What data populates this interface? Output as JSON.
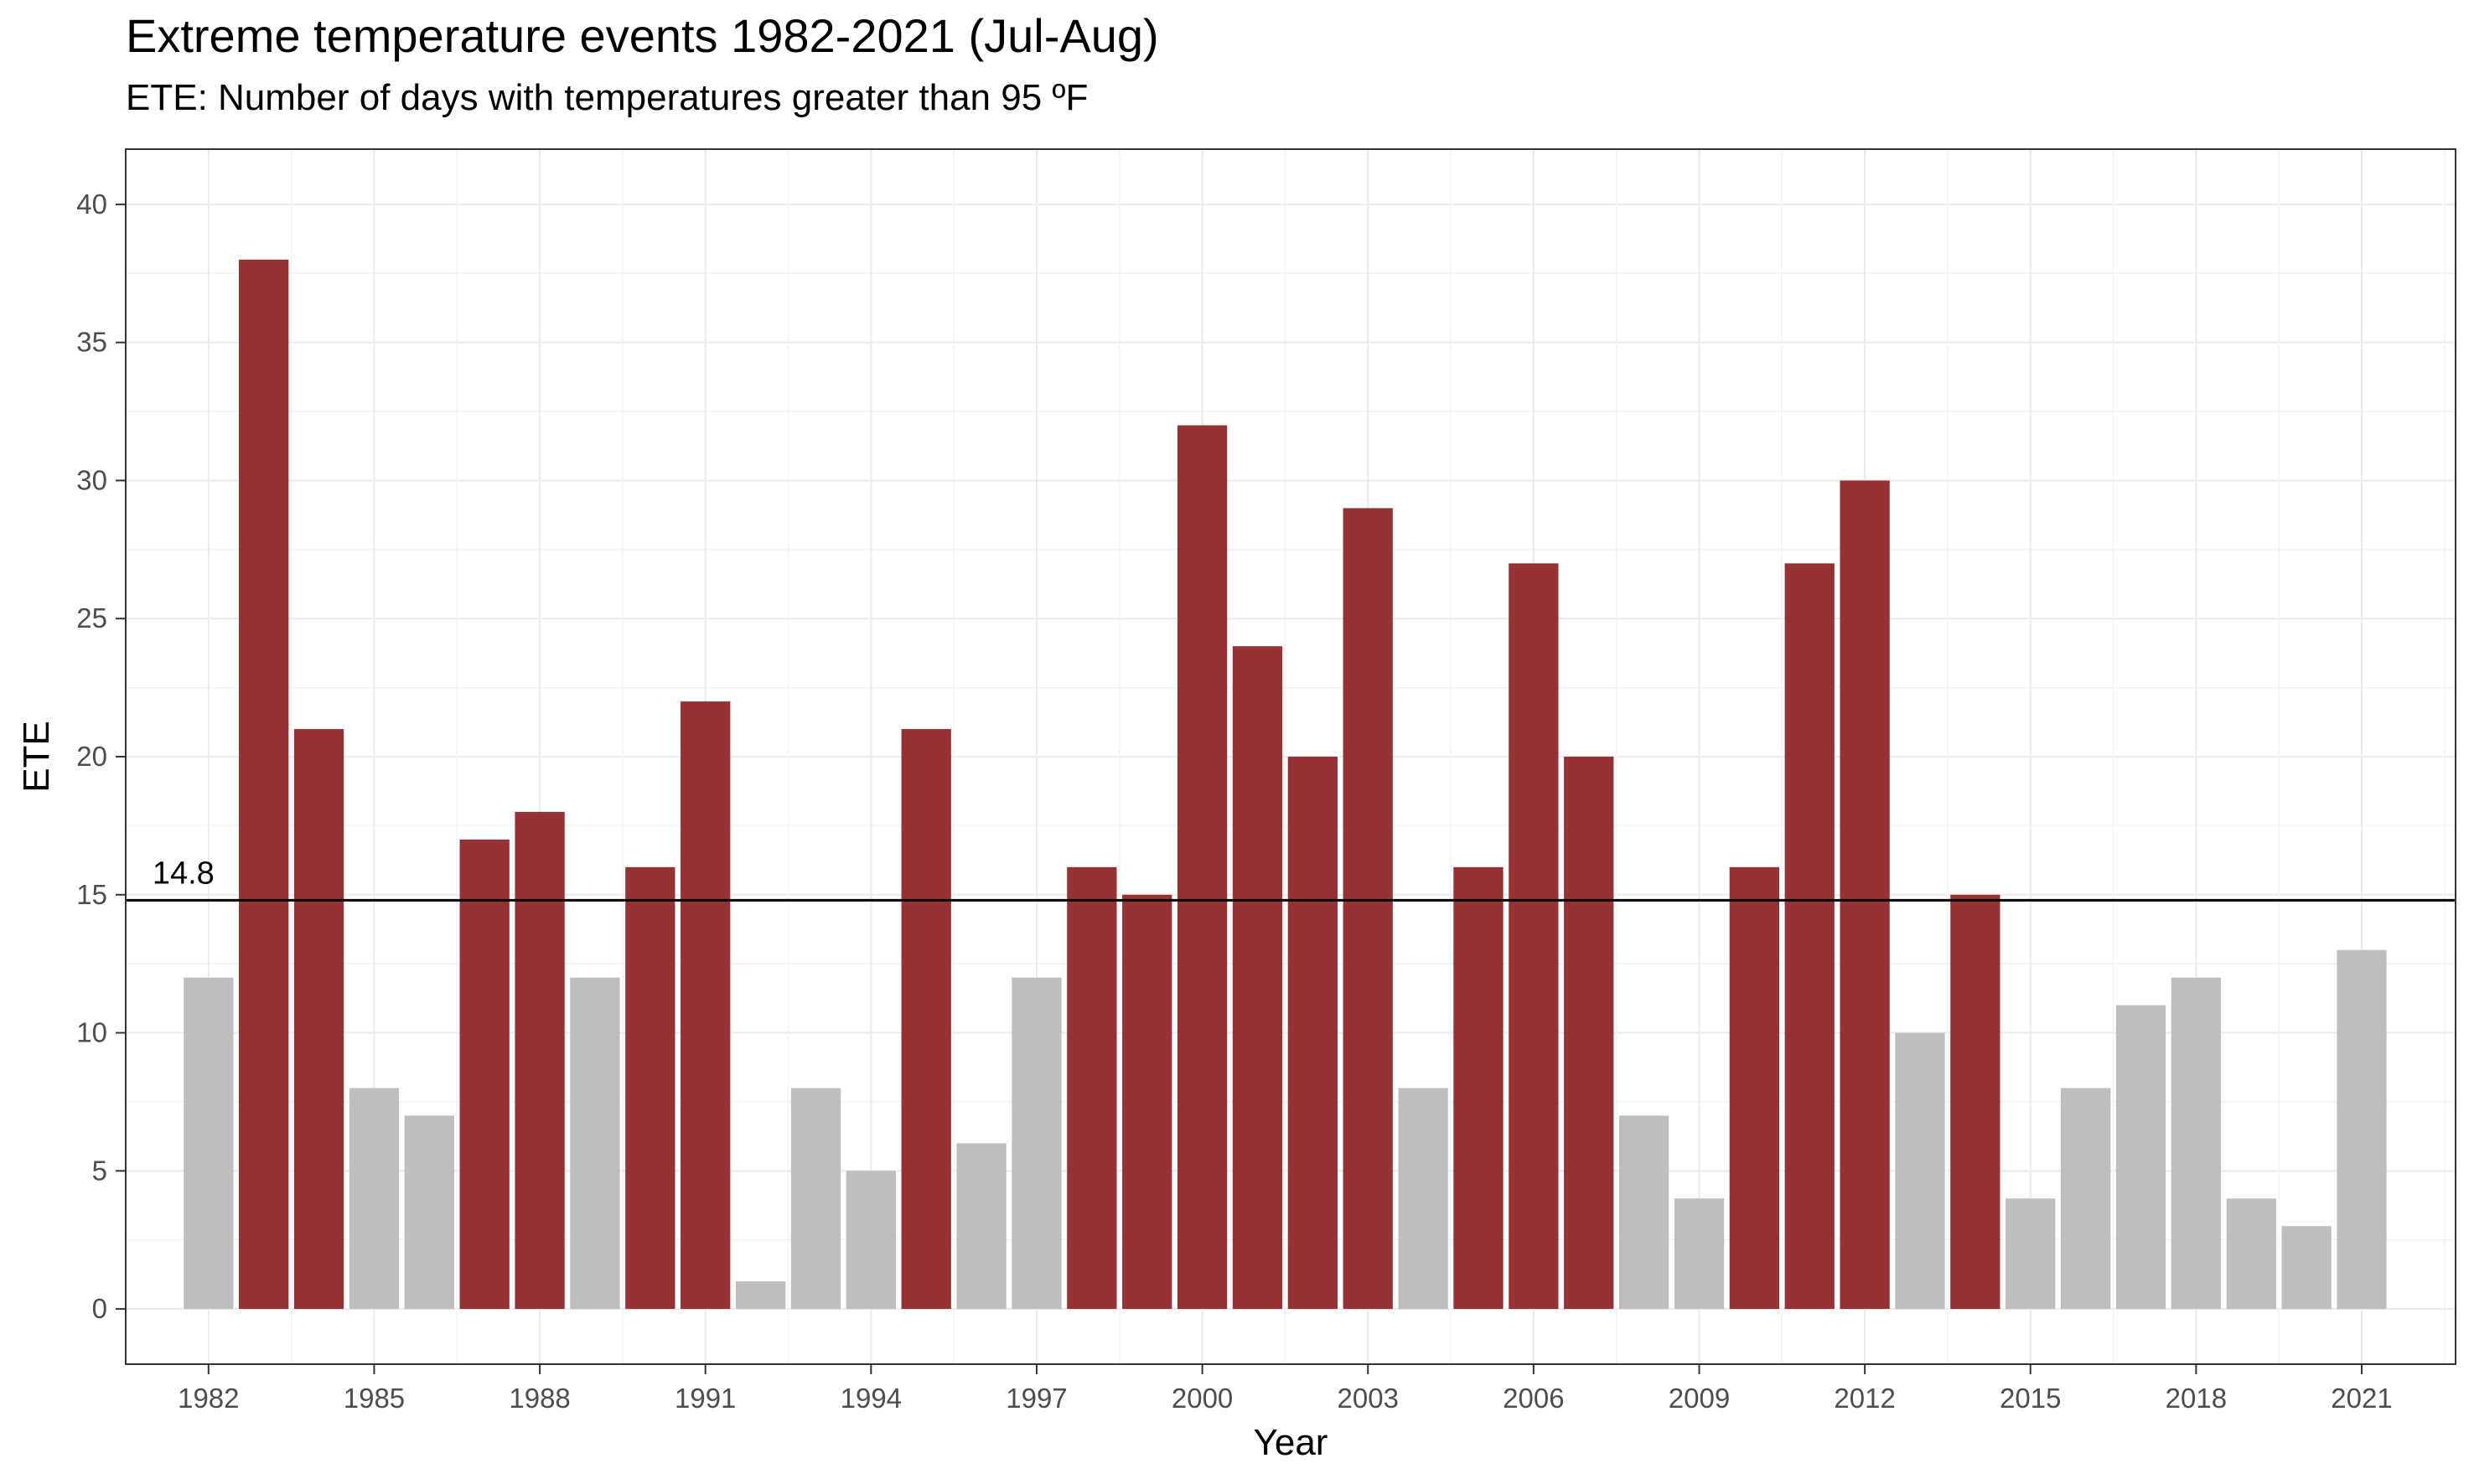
{
  "chart_data": {
    "type": "bar",
    "title": "Extreme temperature events 1982-2021 (Jul-Aug)",
    "subtitle": "ETE: Number of days with temperatures greater than 95 ºF",
    "xlabel": "Year",
    "ylabel": "ETE",
    "ylim": [
      -2,
      42
    ],
    "xlim": [
      1980.5,
      2022.7
    ],
    "yticks": [
      0,
      5,
      10,
      15,
      20,
      25,
      30,
      35,
      40
    ],
    "xticks": [
      1982,
      1985,
      1988,
      1991,
      1994,
      1997,
      2000,
      2003,
      2006,
      2009,
      2012,
      2015,
      2018,
      2021
    ],
    "grid": true,
    "threshold": 14.8,
    "threshold_label": "14.8",
    "colors": {
      "above": "#963235",
      "below": "#bebebe",
      "threshold_line": "#000000"
    },
    "years": [
      1982,
      1983,
      1984,
      1985,
      1986,
      1987,
      1988,
      1989,
      1990,
      1991,
      1992,
      1993,
      1994,
      1995,
      1996,
      1997,
      1998,
      1999,
      2000,
      2001,
      2002,
      2003,
      2004,
      2005,
      2006,
      2007,
      2008,
      2009,
      2010,
      2011,
      2012,
      2013,
      2014,
      2015,
      2016,
      2017,
      2018,
      2019,
      2020,
      2021
    ],
    "values": [
      12,
      38,
      21,
      8,
      7,
      17,
      18,
      12,
      16,
      22,
      1,
      8,
      5,
      21,
      6,
      12,
      16,
      15,
      32,
      24,
      20,
      29,
      8,
      16,
      27,
      20,
      7,
      4,
      16,
      27,
      30,
      10,
      15,
      4,
      8,
      11,
      12,
      4,
      3,
      13
    ]
  }
}
